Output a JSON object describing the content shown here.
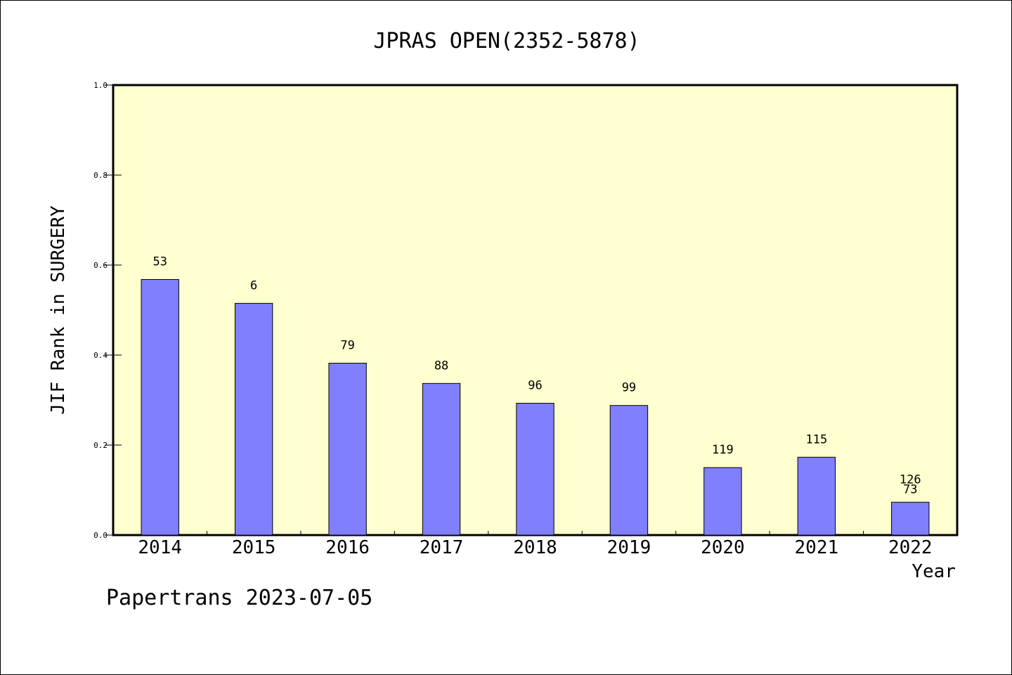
{
  "chart_data": {
    "type": "bar",
    "title": "JPRAS OPEN(2352-5878)",
    "xlabel": "Year",
    "ylabel": "JIF Rank in SURGERY",
    "categories": [
      "2014",
      "2015",
      "2016",
      "2017",
      "2018",
      "2019",
      "2020",
      "2021",
      "2022"
    ],
    "values": [
      0.568,
      0.515,
      0.382,
      0.337,
      0.293,
      0.288,
      0.15,
      0.173,
      0.073
    ],
    "data_labels": [
      [
        "53"
      ],
      [
        "6"
      ],
      [
        "79"
      ],
      [
        "88"
      ],
      [
        "96"
      ],
      [
        "99"
      ],
      [
        "119"
      ],
      [
        "115"
      ],
      [
        "126",
        "73"
      ]
    ],
    "ylim": [
      0,
      1.0
    ],
    "yticks": [
      0.0,
      0.2,
      0.4,
      0.6,
      0.8,
      1.0
    ],
    "ytick_labels": [
      "0.0",
      "0.2",
      "0.4",
      "0.6",
      "0.8",
      "1.0"
    ],
    "grid": false,
    "legend": "none",
    "colors": {
      "plot_background": "#ffffd0",
      "bar_fill": "#8080ff",
      "bar_stroke": "#000000",
      "axis": "#000000"
    }
  },
  "footer": {
    "text": "Papertrans 2023-07-05"
  }
}
